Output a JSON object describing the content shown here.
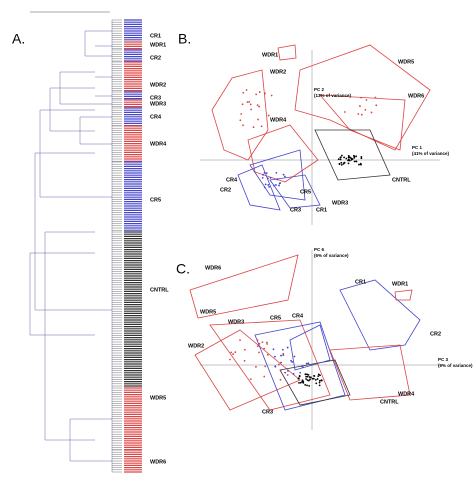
{
  "panels": [
    {
      "label": "A.",
      "groups": [
        "CR1",
        "WDR1",
        "CR2",
        "WDR2",
        "CR3",
        "WDR3",
        "CR4",
        "WDR4",
        "CR5",
        "CNTRL",
        "WDR5",
        "WDR6"
      ]
    },
    {
      "label": "B.",
      "axes": {
        "y": "PC 2",
        "y_note": "(13% of variance)",
        "x": "PC 1",
        "x_note": "(41% of variance)"
      },
      "groups": [
        "WDR1",
        "WDR5",
        "WDR2",
        "WDR6",
        "WDR4",
        "CNTRL",
        "CR5",
        "CR4",
        "CR2",
        "CR3",
        "CR1",
        "WDR3"
      ]
    },
    {
      "label": "C.",
      "axes": {
        "y": "PC 6",
        "y_note": "(6% of variance)",
        "x": "PC 3",
        "x_note": "(9% of variance)"
      },
      "groups": [
        "WDR6",
        "CR1",
        "WDR1",
        "WDR5",
        "WDR3",
        "CR5",
        "CR4",
        "CR2",
        "WDR2",
        "CR3",
        "CNTRL",
        "WDR4"
      ]
    }
  ]
}
